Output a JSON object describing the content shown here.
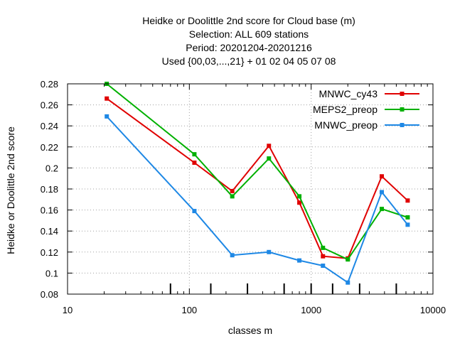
{
  "chart_data": {
    "type": "line",
    "title": [
      "Heidke or Doolittle 2nd score  for Cloud base (m)",
      "Selection: ALL    609 stations",
      "Period: 20201204-20201216",
      "Used {00,03,...,21} + 01 02 04 05 07 08"
    ],
    "xlabel": "classes m",
    "ylabel": "Heidke or Doolittle 2nd score",
    "xscale": "log",
    "xlim": [
      10,
      10000
    ],
    "ylim": [
      0.08,
      0.28
    ],
    "xticks": [
      10,
      100,
      1000,
      10000
    ],
    "xtick_labels": [
      "10",
      "100",
      "1000",
      "10000"
    ],
    "yticks": [
      0.08,
      0.1,
      0.12,
      0.14,
      0.16,
      0.18,
      0.2,
      0.22,
      0.24,
      0.26,
      0.28
    ],
    "ytick_labels": [
      "0.08",
      "0.1",
      "0.12",
      "0.14",
      "0.16",
      "0.18",
      "0.2",
      "0.22",
      "0.24",
      "0.26",
      "0.28"
    ],
    "class_limit_marks": [
      70,
      150,
      300,
      600,
      1000,
      1500,
      2500,
      5000
    ],
    "grid": true,
    "legend_position": "top-right",
    "x": [
      21,
      110,
      225,
      450,
      800,
      1250,
      2000,
      3800,
      6200
    ],
    "series": [
      {
        "name": "MNWC_cy43",
        "color": "#e00000",
        "values": [
          0.266,
          0.205,
          0.178,
          0.221,
          0.167,
          0.116,
          0.114,
          0.192,
          0.169
        ]
      },
      {
        "name": "MEPS2_preop",
        "color": "#00b000",
        "values": [
          0.28,
          0.213,
          0.173,
          0.209,
          0.173,
          0.124,
          0.113,
          0.161,
          0.153
        ]
      },
      {
        "name": "MNWC_preop",
        "color": "#1e88e5",
        "values": [
          0.249,
          0.159,
          0.117,
          0.12,
          0.112,
          0.107,
          0.091,
          0.177,
          0.146
        ]
      }
    ]
  }
}
